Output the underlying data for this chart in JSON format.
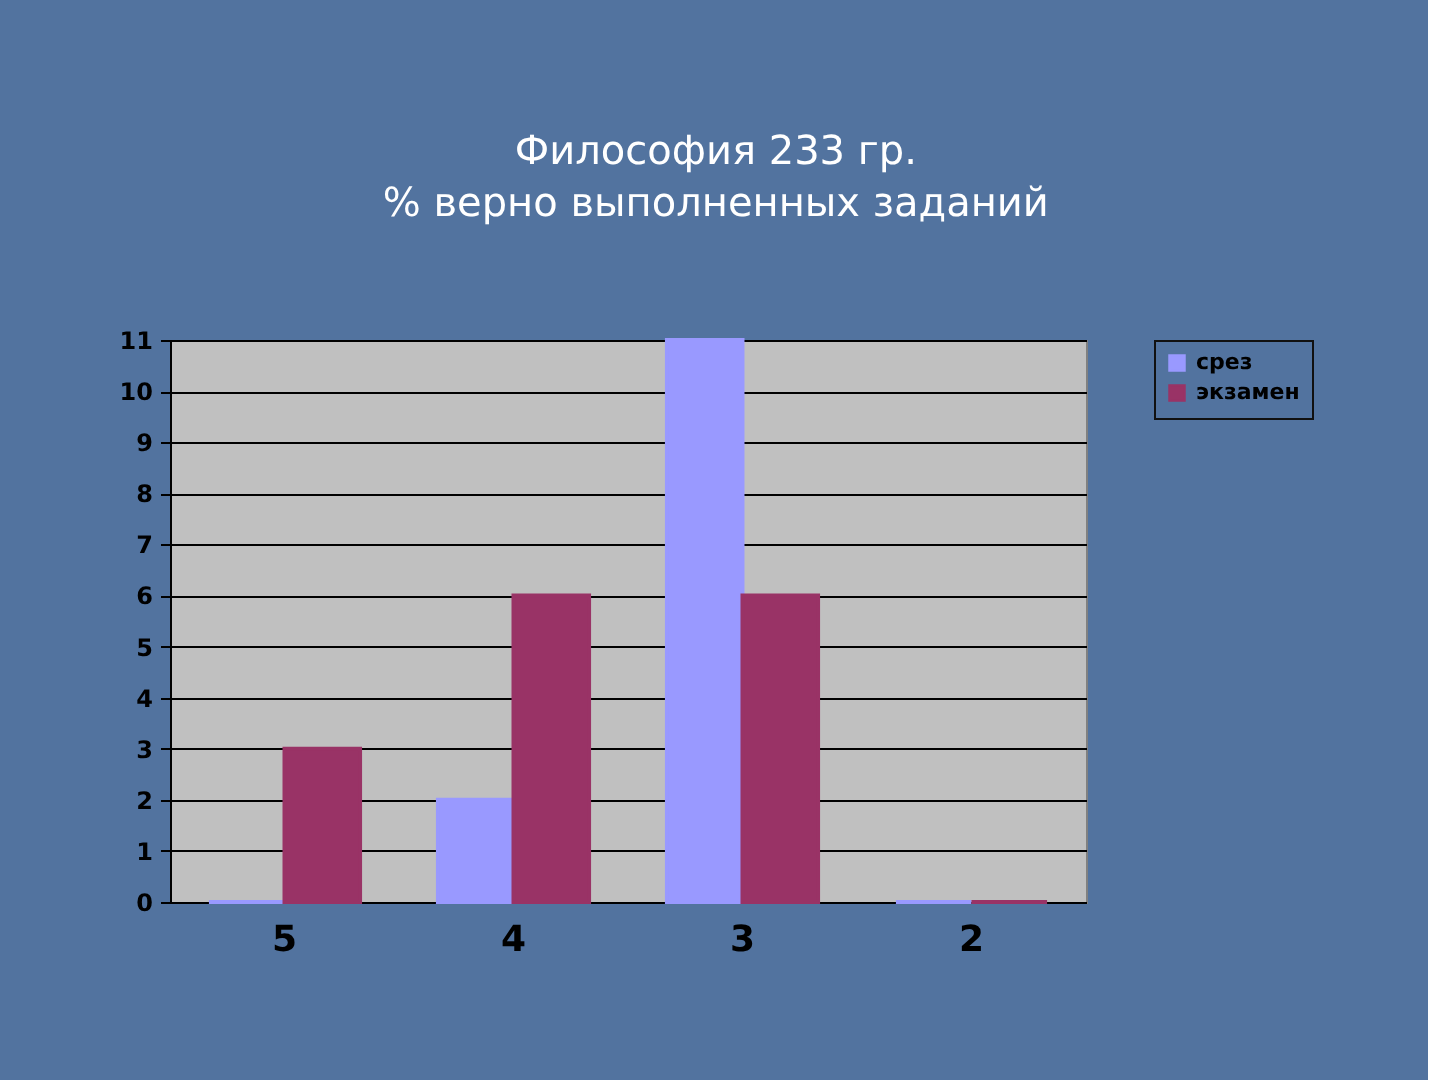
{
  "chart_data": {
    "type": "bar",
    "title": "Философия 233 гр.",
    "subtitle": "% верно выполненных заданий",
    "categories": [
      "5",
      "4",
      "3",
      "2"
    ],
    "series": [
      {
        "name": "срез",
        "color": "#9999ff",
        "values": [
          0,
          2,
          11,
          0
        ]
      },
      {
        "name": "экзамен",
        "color": "#993366",
        "values": [
          3,
          6,
          6,
          0
        ]
      }
    ],
    "ylim": [
      0,
      11
    ],
    "yticks": [
      0,
      1,
      2,
      3,
      4,
      5,
      6,
      7,
      8,
      9,
      10,
      11
    ],
    "grid": "y",
    "legend": "right"
  }
}
